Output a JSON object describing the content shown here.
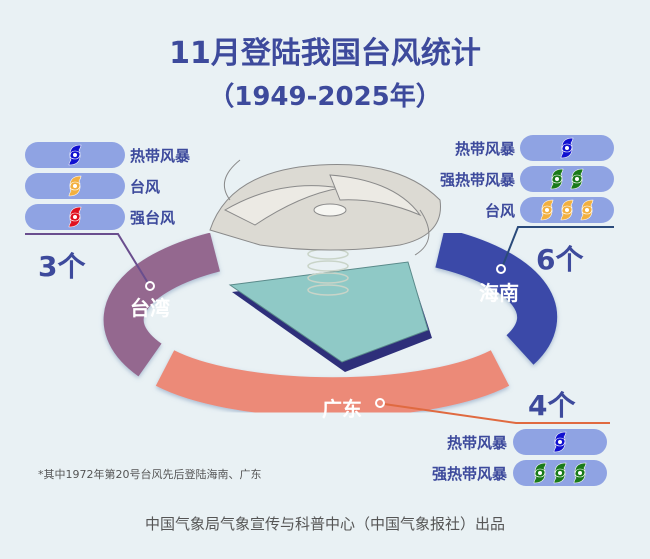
{
  "title": "11月登陆我国台风统计",
  "subtitle": "（1949-2025年）",
  "colors": {
    "tropical_storm": "#1010d0",
    "severe_tropical_storm": "#1a7a1a",
    "typhoon": "#f2b040",
    "strong_typhoon": "#e01020",
    "taiwan": "#94688f",
    "hainan": "#3a4aa8",
    "guangdong": "#ec8a78",
    "pill": "#8fa3e3",
    "text": "#3d4a9c"
  },
  "taiwan": {
    "region": "台湾",
    "count": "3个",
    "items": [
      {
        "label": "热带风暴",
        "type": "tropical_storm",
        "n": 1
      },
      {
        "label": "台风",
        "type": "typhoon",
        "n": 1
      },
      {
        "label": "强台风",
        "type": "strong_typhoon",
        "n": 1
      }
    ]
  },
  "hainan": {
    "region": "海南",
    "count": "6个",
    "items": [
      {
        "label": "热带风暴",
        "type": "tropical_storm",
        "n": 1
      },
      {
        "label": "强热带风暴",
        "type": "severe_tropical_storm",
        "n": 2
      },
      {
        "label": "台风",
        "type": "typhoon",
        "n": 3
      }
    ]
  },
  "guangdong": {
    "region": "广东",
    "count": "4个",
    "items": [
      {
        "label": "热带风暴",
        "type": "tropical_storm",
        "n": 1
      },
      {
        "label": "强热带风暴",
        "type": "severe_tropical_storm",
        "n": 3
      }
    ]
  },
  "note": "*其中1972年第20号台风先后登陆海南、广东",
  "footer": "中国气象局气象宣传与科普中心（中国气象报社）出品"
}
